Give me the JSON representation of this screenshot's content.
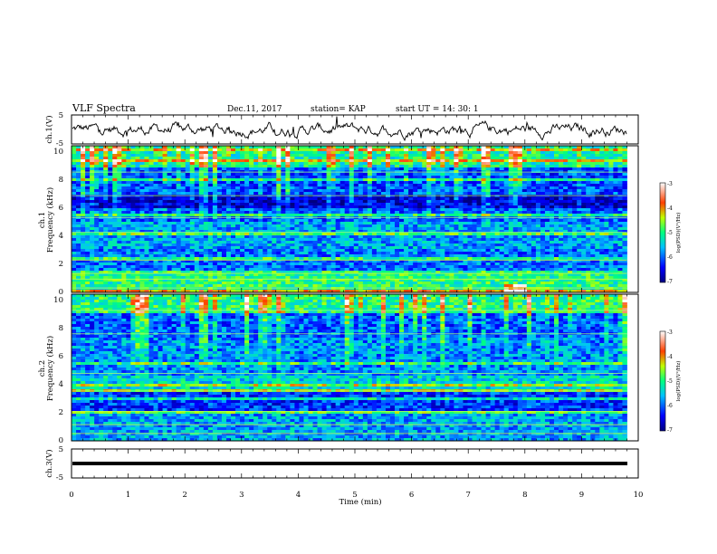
{
  "header": {
    "title": "VLF Spectra",
    "date": "Dec.11, 2017",
    "station": "station= KAP",
    "start_ut": "start  UT =   14: 30: 1"
  },
  "chart_data": [
    {
      "type": "line",
      "id": "ch1-waveform",
      "ylabel": "ch.1(V)",
      "ylim": [
        -5,
        5
      ],
      "yticks": [
        "5",
        "-5"
      ],
      "xlim": [
        0,
        10
      ],
      "x_extent_min": [
        0,
        9.8
      ],
      "values_note_mean": 0
    },
    {
      "type": "heatmap",
      "id": "ch1-spectrogram",
      "ylabel_top": "ch.1",
      "ylabel": "Frequency (kHz)",
      "ylim": [
        0,
        10
      ],
      "yticks": [
        "0",
        "2",
        "4",
        "6",
        "8",
        "10"
      ],
      "xlim": [
        0,
        10
      ],
      "x_extent_min": [
        0,
        9.8
      ],
      "colorbar": {
        "label": "log(PSD)(V²/Hz)",
        "range": [
          -7,
          -3
        ],
        "ticks": [
          "-3",
          "-4",
          "-5",
          "-6",
          "-7"
        ]
      }
    },
    {
      "type": "heatmap",
      "id": "ch2-spectrogram",
      "ylabel_top": "ch.2",
      "ylabel": "Frequency (kHz)",
      "ylim": [
        0,
        10
      ],
      "yticks": [
        "0",
        "2",
        "4",
        "6",
        "8",
        "10"
      ],
      "xlim": [
        0,
        10
      ],
      "x_extent_min": [
        0,
        9.8
      ],
      "colorbar": {
        "label": "log(PSD)(V²/Hz)",
        "range": [
          -7,
          -3
        ],
        "ticks": [
          "-3",
          "-4",
          "-5",
          "-6",
          "-7"
        ]
      }
    },
    {
      "type": "line",
      "id": "ch3-waveform",
      "ylabel": "ch.3(V)",
      "ylim": [
        -5,
        5
      ],
      "yticks": [
        "5",
        "-5"
      ],
      "xlim": [
        0,
        10
      ],
      "x_extent_min": [
        0,
        9.8
      ],
      "values_note_level": 0
    }
  ],
  "xaxis": {
    "label": "Time (min)",
    "ticks": [
      "0",
      "1",
      "2",
      "3",
      "4",
      "5",
      "6",
      "7",
      "8",
      "9",
      "10"
    ]
  },
  "colors": {
    "frame": "#000000",
    "waveform": "#000000"
  }
}
